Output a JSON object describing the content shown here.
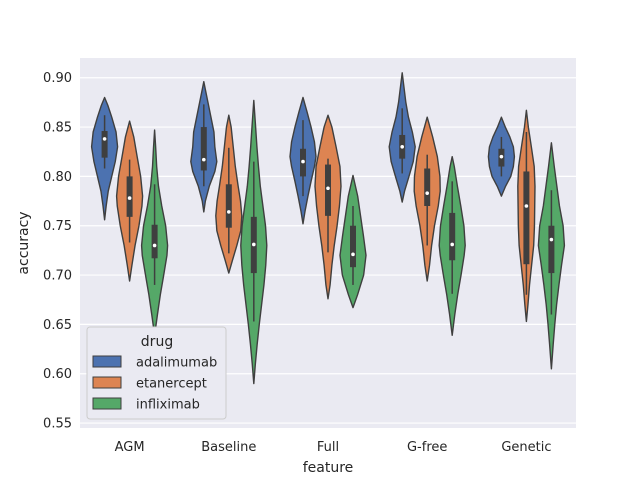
{
  "chart_data": {
    "type": "violin",
    "title": "",
    "xlabel": "feature",
    "ylabel": "accuracy",
    "ylim": [
      0.545,
      0.92
    ],
    "yticks": [
      0.55,
      0.6,
      0.65,
      0.7,
      0.75,
      0.8,
      0.85,
      0.9
    ],
    "ytick_labels": [
      "0.55",
      "0.60",
      "0.65",
      "0.70",
      "0.75",
      "0.80",
      "0.85",
      "0.90"
    ],
    "grid": true,
    "legend": {
      "title": "drug",
      "placement": "lower-left"
    },
    "categories": [
      "AGM",
      "Baseline",
      "Full",
      "G-free",
      "Genetic"
    ],
    "series": [
      {
        "name": "adalimumab",
        "color": "#4c72b0",
        "violins": [
          {
            "profile": [
              [
                0.756,
                0.0
              ],
              [
                0.77,
                0.12
              ],
              [
                0.785,
                0.28
              ],
              [
                0.8,
                0.55
              ],
              [
                0.815,
                0.82
              ],
              [
                0.83,
                1.0
              ],
              [
                0.845,
                0.88
              ],
              [
                0.86,
                0.55
              ],
              [
                0.872,
                0.25
              ],
              [
                0.88,
                0.0
              ]
            ],
            "q1": 0.819,
            "median": 0.838,
            "q3": 0.846,
            "whisker_low": 0.808,
            "whisker_high": 0.862
          },
          {
            "profile": [
              [
                0.764,
                0.0
              ],
              [
                0.775,
                0.12
              ],
              [
                0.79,
                0.42
              ],
              [
                0.805,
                0.85
              ],
              [
                0.815,
                1.0
              ],
              [
                0.83,
                0.85
              ],
              [
                0.845,
                0.78
              ],
              [
                0.86,
                0.55
              ],
              [
                0.875,
                0.32
              ],
              [
                0.888,
                0.12
              ],
              [
                0.896,
                0.0
              ]
            ],
            "q1": 0.806,
            "median": 0.817,
            "q3": 0.85,
            "whisker_low": 0.79,
            "whisker_high": 0.873
          },
          {
            "profile": [
              [
                0.752,
                0.0
              ],
              [
                0.765,
                0.16
              ],
              [
                0.78,
                0.38
              ],
              [
                0.795,
                0.62
              ],
              [
                0.81,
                0.88
              ],
              [
                0.82,
                1.0
              ],
              [
                0.835,
                0.88
              ],
              [
                0.85,
                0.62
              ],
              [
                0.865,
                0.32
              ],
              [
                0.88,
                0.0
              ]
            ],
            "q1": 0.8,
            "median": 0.815,
            "q3": 0.828,
            "whisker_low": 0.78,
            "whisker_high": 0.857
          },
          {
            "profile": [
              [
                0.774,
                0.0
              ],
              [
                0.785,
                0.18
              ],
              [
                0.8,
                0.52
              ],
              [
                0.815,
                0.85
              ],
              [
                0.83,
                1.0
              ],
              [
                0.845,
                0.78
              ],
              [
                0.86,
                0.48
              ],
              [
                0.875,
                0.28
              ],
              [
                0.89,
                0.14
              ],
              [
                0.905,
                0.0
              ]
            ],
            "q1": 0.818,
            "median": 0.83,
            "q3": 0.842,
            "whisker_low": 0.803,
            "whisker_high": 0.869
          },
          {
            "profile": [
              [
                0.78,
                0.0
              ],
              [
                0.79,
                0.32
              ],
              [
                0.8,
                0.72
              ],
              [
                0.81,
                0.92
              ],
              [
                0.82,
                1.0
              ],
              [
                0.83,
                0.92
              ],
              [
                0.84,
                0.65
              ],
              [
                0.85,
                0.3
              ],
              [
                0.86,
                0.0
              ]
            ],
            "q1": 0.81,
            "median": 0.82,
            "q3": 0.828,
            "whisker_low": 0.8,
            "whisker_high": 0.84
          }
        ]
      },
      {
        "name": "etanercept",
        "color": "#dd8452",
        "violins": [
          {
            "profile": [
              [
                0.694,
                0.0
              ],
              [
                0.71,
                0.18
              ],
              [
                0.73,
                0.42
              ],
              [
                0.75,
                0.72
              ],
              [
                0.77,
                0.95
              ],
              [
                0.78,
                1.0
              ],
              [
                0.8,
                0.85
              ],
              [
                0.82,
                0.58
              ],
              [
                0.84,
                0.32
              ],
              [
                0.856,
                0.0
              ]
            ],
            "q1": 0.759,
            "median": 0.778,
            "q3": 0.8,
            "whisker_low": 0.733,
            "whisker_high": 0.817
          },
          {
            "profile": [
              [
                0.702,
                0.0
              ],
              [
                0.715,
                0.28
              ],
              [
                0.73,
                0.62
              ],
              [
                0.745,
                0.92
              ],
              [
                0.76,
                1.0
              ],
              [
                0.775,
                0.9
              ],
              [
                0.79,
                0.72
              ],
              [
                0.81,
                0.5
              ],
              [
                0.83,
                0.34
              ],
              [
                0.85,
                0.18
              ],
              [
                0.862,
                0.0
              ]
            ],
            "q1": 0.748,
            "median": 0.764,
            "q3": 0.792,
            "whisker_low": 0.722,
            "whisker_high": 0.829
          },
          {
            "profile": [
              [
                0.676,
                0.0
              ],
              [
                0.69,
                0.16
              ],
              [
                0.71,
                0.3
              ],
              [
                0.73,
                0.48
              ],
              [
                0.75,
                0.7
              ],
              [
                0.77,
                0.88
              ],
              [
                0.79,
                1.0
              ],
              [
                0.81,
                0.92
              ],
              [
                0.83,
                0.62
              ],
              [
                0.85,
                0.3
              ],
              [
                0.862,
                0.0
              ]
            ],
            "q1": 0.76,
            "median": 0.788,
            "q3": 0.812,
            "whisker_low": 0.723,
            "whisker_high": 0.818
          },
          {
            "profile": [
              [
                0.694,
                0.0
              ],
              [
                0.71,
                0.18
              ],
              [
                0.73,
                0.34
              ],
              [
                0.75,
                0.56
              ],
              [
                0.77,
                0.85
              ],
              [
                0.785,
                1.0
              ],
              [
                0.8,
                0.98
              ],
              [
                0.82,
                0.78
              ],
              [
                0.84,
                0.42
              ],
              [
                0.86,
                0.0
              ]
            ],
            "q1": 0.77,
            "median": 0.783,
            "q3": 0.808,
            "whisker_low": 0.73,
            "whisker_high": 0.822
          },
          {
            "profile": [
              [
                0.653,
                0.0
              ],
              [
                0.67,
                0.12
              ],
              [
                0.69,
                0.24
              ],
              [
                0.71,
                0.4
              ],
              [
                0.73,
                0.56
              ],
              [
                0.75,
                0.62
              ],
              [
                0.77,
                0.64
              ],
              [
                0.79,
                0.66
              ],
              [
                0.81,
                0.6
              ],
              [
                0.83,
                0.38
              ],
              [
                0.85,
                0.15
              ],
              [
                0.867,
                0.0
              ]
            ],
            "q1": 0.711,
            "median": 0.77,
            "q3": 0.805,
            "whisker_low": 0.68,
            "whisker_high": 0.845
          }
        ]
      },
      {
        "name": "infliximab",
        "color": "#55a868",
        "violins": [
          {
            "profile": [
              [
                0.639,
                0.0
              ],
              [
                0.66,
                0.22
              ],
              [
                0.68,
                0.44
              ],
              [
                0.7,
                0.7
              ],
              [
                0.72,
                0.95
              ],
              [
                0.73,
                1.0
              ],
              [
                0.75,
                0.85
              ],
              [
                0.77,
                0.55
              ],
              [
                0.79,
                0.3
              ],
              [
                0.81,
                0.16
              ],
              [
                0.83,
                0.08
              ],
              [
                0.847,
                0.0
              ]
            ],
            "q1": 0.717,
            "median": 0.73,
            "q3": 0.751,
            "whisker_low": 0.69,
            "whisker_high": 0.792
          },
          {
            "profile": [
              [
                0.59,
                0.0
              ],
              [
                0.61,
                0.12
              ],
              [
                0.63,
                0.26
              ],
              [
                0.65,
                0.42
              ],
              [
                0.67,
                0.6
              ],
              [
                0.69,
                0.78
              ],
              [
                0.71,
                0.92
              ],
              [
                0.73,
                1.0
              ],
              [
                0.75,
                0.9
              ],
              [
                0.77,
                0.7
              ],
              [
                0.79,
                0.5
              ],
              [
                0.81,
                0.36
              ],
              [
                0.83,
                0.24
              ],
              [
                0.85,
                0.14
              ],
              [
                0.877,
                0.0
              ]
            ],
            "q1": 0.702,
            "median": 0.731,
            "q3": 0.759,
            "whisker_low": 0.653,
            "whisker_high": 0.815
          },
          {
            "profile": [
              [
                0.667,
                0.0
              ],
              [
                0.68,
                0.35
              ],
              [
                0.7,
                0.82
              ],
              [
                0.72,
                1.0
              ],
              [
                0.74,
                0.8
              ],
              [
                0.76,
                0.58
              ],
              [
                0.78,
                0.36
              ],
              [
                0.801,
                0.0
              ]
            ],
            "q1": 0.708,
            "median": 0.721,
            "q3": 0.75,
            "whisker_low": 0.69,
            "whisker_high": 0.77
          },
          {
            "profile": [
              [
                0.639,
                0.0
              ],
              [
                0.66,
                0.2
              ],
              [
                0.68,
                0.42
              ],
              [
                0.7,
                0.68
              ],
              [
                0.72,
                0.92
              ],
              [
                0.73,
                1.0
              ],
              [
                0.75,
                0.9
              ],
              [
                0.77,
                0.66
              ],
              [
                0.79,
                0.4
              ],
              [
                0.81,
                0.16
              ],
              [
                0.82,
                0.0
              ]
            ],
            "q1": 0.715,
            "median": 0.731,
            "q3": 0.763,
            "whisker_low": 0.681,
            "whisker_high": 0.795
          },
          {
            "profile": [
              [
                0.605,
                0.0
              ],
              [
                0.63,
                0.14
              ],
              [
                0.65,
                0.26
              ],
              [
                0.67,
                0.4
              ],
              [
                0.69,
                0.58
              ],
              [
                0.71,
                0.78
              ],
              [
                0.73,
                1.0
              ],
              [
                0.75,
                0.9
              ],
              [
                0.77,
                0.62
              ],
              [
                0.79,
                0.42
              ],
              [
                0.81,
                0.22
              ],
              [
                0.834,
                0.0
              ]
            ],
            "q1": 0.702,
            "median": 0.736,
            "q3": 0.75,
            "whisker_low": 0.66,
            "whisker_high": 0.786
          }
        ]
      }
    ]
  }
}
